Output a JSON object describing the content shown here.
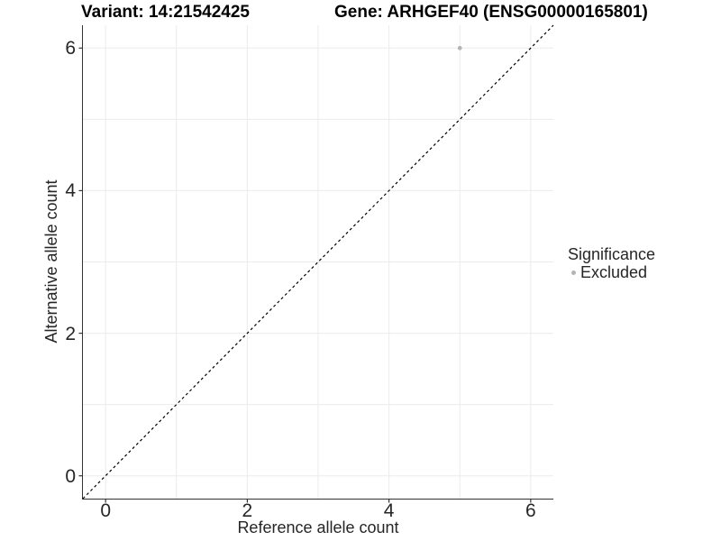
{
  "chart_data": {
    "type": "scatter",
    "titles": {
      "variant": "Variant: 14:21542425",
      "gene": "Gene: ARHGEF40 (ENSG00000165801)"
    },
    "axes": {
      "x": {
        "label": "Reference allele count",
        "min": -0.32,
        "max": 6.32,
        "ticks": [
          0,
          2,
          4,
          6
        ],
        "gridlines": [
          0,
          1,
          2,
          3,
          4,
          5,
          6
        ]
      },
      "y": {
        "label": "Alternative allele count",
        "min": -0.32,
        "max": 6.32,
        "ticks": [
          0,
          2,
          4,
          6
        ],
        "gridlines": [
          0,
          1,
          2,
          3,
          4,
          5,
          6
        ]
      }
    },
    "points": [
      {
        "x": 5,
        "y": 6,
        "significance": "Excluded"
      }
    ],
    "point_radius": 2.4,
    "identity_line": {
      "slope": 1,
      "intercept": 0,
      "style": "dashed",
      "color": "#000000",
      "dash": "3,3"
    },
    "legend": {
      "title": "Significance",
      "position": "right",
      "items": [
        {
          "label": "Excluded",
          "color": "#b4b4b4",
          "marker": "circle"
        }
      ]
    },
    "colors": {
      "background": "#ffffff",
      "grid": "#ebebeb",
      "axis": "#333333",
      "text": "#262626",
      "point": "#b4b4b4"
    }
  }
}
